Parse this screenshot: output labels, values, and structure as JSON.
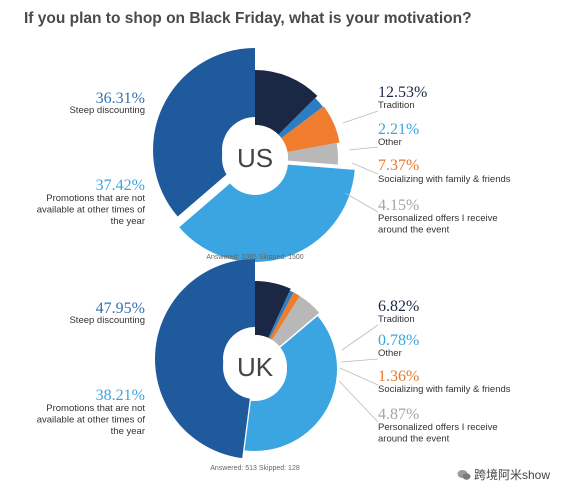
{
  "title": "If you plan to shop on Black Friday, what is your motivation?",
  "watermark": "跨境阿米show",
  "chart_data": [
    {
      "type": "pie",
      "center_label": "US",
      "categories": [
        "Steep discounting",
        "Tradition",
        "Other",
        "Socializing with family & friends",
        "Personalized offers I receive around the event",
        "Promotions that are not available at other times of the year"
      ],
      "values": [
        36.31,
        12.53,
        2.21,
        7.37,
        4.15,
        37.42
      ],
      "value_labels": [
        "36.31%",
        "12.53%",
        "2.21%",
        "7.37%",
        "4.15%",
        "37.42%"
      ],
      "colors": [
        "#1f5a9c",
        "#1a2845",
        "#2b7ec4",
        "#ef7d2d",
        "#b8b8b8",
        "#3aa5e0"
      ],
      "footnote": "Answered: 1085  Skipped: 1500"
    },
    {
      "type": "pie",
      "center_label": "UK",
      "categories": [
        "Steep discounting",
        "Tradition",
        "Other",
        "Socializing with family & friends",
        "Personalized offers I receive around the event",
        "Promotions that are not available at other times of the year"
      ],
      "values": [
        47.95,
        6.82,
        0.78,
        1.36,
        4.87,
        38.21
      ],
      "value_labels": [
        "47.95%",
        "6.82%",
        "0.78%",
        "1.36%",
        "4.87%",
        "38.21%"
      ],
      "colors": [
        "#1f5a9c",
        "#1a2845",
        "#2b7ec4",
        "#ef7d2d",
        "#b8b8b8",
        "#3aa5e0"
      ],
      "footnote": "Answered: 513  Skipped: 128"
    }
  ]
}
